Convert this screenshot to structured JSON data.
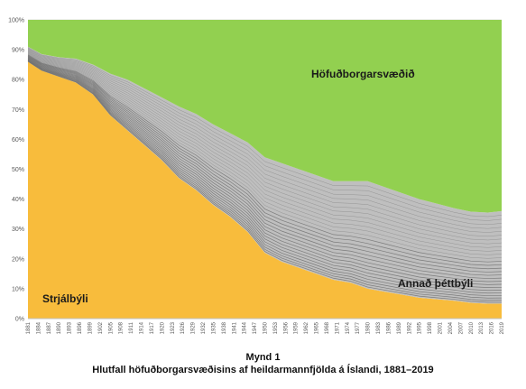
{
  "chart_data": {
    "type": "area",
    "stacked": true,
    "percent_stacked": true,
    "title": "",
    "xlabel": "",
    "ylabel": "",
    "ylim": [
      0,
      100
    ],
    "y_ticks": [
      "0%",
      "10%",
      "20%",
      "30%",
      "40%",
      "50%",
      "60%",
      "70%",
      "80%",
      "90%",
      "100%"
    ],
    "x_ticks": [
      "1881",
      "1884",
      "1887",
      "1890",
      "1893",
      "1896",
      "1899",
      "1902",
      "1905",
      "1908",
      "1911",
      "1914",
      "1917",
      "1920",
      "1923",
      "1926",
      "1929",
      "1932",
      "1935",
      "1938",
      "1941",
      "1944",
      "1947",
      "1950",
      "1953",
      "1956",
      "1959",
      "1962",
      "1965",
      "1968",
      "1971",
      "1974",
      "1977",
      "1980",
      "1983",
      "1986",
      "1989",
      "1992",
      "1995",
      "1998",
      "2001",
      "2004",
      "2007",
      "2010",
      "2013",
      "2016",
      "2019"
    ],
    "x_year_range": [
      1881,
      2019
    ],
    "grid": "horizontal",
    "legend": "none",
    "series": [
      {
        "name": "Strjálbýli",
        "color": "#F8BC3C",
        "points": [
          [
            1881,
            86
          ],
          [
            1885,
            83
          ],
          [
            1890,
            81
          ],
          [
            1895,
            79
          ],
          [
            1900,
            75
          ],
          [
            1905,
            68
          ],
          [
            1910,
            63
          ],
          [
            1915,
            58
          ],
          [
            1920,
            53
          ],
          [
            1925,
            47
          ],
          [
            1930,
            43
          ],
          [
            1935,
            38
          ],
          [
            1940,
            34
          ],
          [
            1945,
            29
          ],
          [
            1950,
            22
          ],
          [
            1955,
            19
          ],
          [
            1960,
            17
          ],
          [
            1965,
            15
          ],
          [
            1970,
            13
          ],
          [
            1975,
            12
          ],
          [
            1980,
            10
          ],
          [
            1985,
            9
          ],
          [
            1990,
            8
          ],
          [
            1995,
            7
          ],
          [
            2000,
            6.5
          ],
          [
            2005,
            6
          ],
          [
            2010,
            5.3
          ],
          [
            2015,
            5
          ],
          [
            2019,
            5
          ]
        ]
      },
      {
        "name": "Annað þéttbýli",
        "color": "#BFBFBF",
        "points": [
          [
            1881,
            5
          ],
          [
            1885,
            5.5
          ],
          [
            1890,
            6.5
          ],
          [
            1895,
            8
          ],
          [
            1900,
            10
          ],
          [
            1905,
            14
          ],
          [
            1910,
            17
          ],
          [
            1915,
            19
          ],
          [
            1920,
            21
          ],
          [
            1925,
            24
          ],
          [
            1930,
            25.5
          ],
          [
            1935,
            27
          ],
          [
            1940,
            28
          ],
          [
            1945,
            30
          ],
          [
            1950,
            32
          ],
          [
            1955,
            33
          ],
          [
            1960,
            33
          ],
          [
            1965,
            33
          ],
          [
            1970,
            33
          ],
          [
            1975,
            34
          ],
          [
            1980,
            36
          ],
          [
            1985,
            35
          ],
          [
            1990,
            34
          ],
          [
            1995,
            33
          ],
          [
            2000,
            32
          ],
          [
            2005,
            31
          ],
          [
            2010,
            30.5
          ],
          [
            2015,
            30.5
          ],
          [
            2019,
            31
          ]
        ]
      },
      {
        "name": "Höfuðborgarsvæðið",
        "color": "#92D050",
        "points": [
          [
            1881,
            9
          ],
          [
            1885,
            11.5
          ],
          [
            1890,
            12.5
          ],
          [
            1895,
            13
          ],
          [
            1900,
            15
          ],
          [
            1905,
            18
          ],
          [
            1910,
            20
          ],
          [
            1915,
            23
          ],
          [
            1920,
            26
          ],
          [
            1925,
            29
          ],
          [
            1930,
            31.5
          ],
          [
            1935,
            35
          ],
          [
            1940,
            38
          ],
          [
            1945,
            41
          ],
          [
            1950,
            46
          ],
          [
            1955,
            48
          ],
          [
            1960,
            50
          ],
          [
            1965,
            52
          ],
          [
            1970,
            54
          ],
          [
            1975,
            54
          ],
          [
            1980,
            54
          ],
          [
            1985,
            56
          ],
          [
            1990,
            58
          ],
          [
            1995,
            60
          ],
          [
            2000,
            61.5
          ],
          [
            2005,
            63
          ],
          [
            2010,
            64.2
          ],
          [
            2015,
            64.5
          ],
          [
            2019,
            64
          ]
        ]
      }
    ],
    "annotations": [
      "Höfuðborgarsvæðið",
      "Annað þéttbýli",
      "Strjálbýli"
    ]
  },
  "caption": {
    "line1": "Mynd 1",
    "line2": "Hlutfall höfuðborgarsvæðisins af heildarmannfjölda á Íslandi, 1881–2019"
  },
  "colors": {
    "grid": "#D9D9D9",
    "axis_text": "#595959",
    "bands": "#707070"
  }
}
